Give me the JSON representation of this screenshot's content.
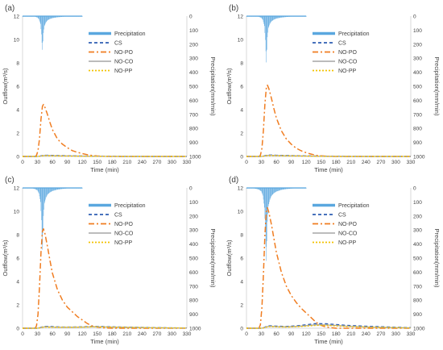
{
  "legend_labels": [
    "Precipitation",
    "CS",
    "NO-PO",
    "NO-CO",
    "NO-PP"
  ],
  "colors": {
    "precipitation": "#5aa7df",
    "cs": "#2f5fb3",
    "no_po": "#f07d21",
    "no_co": "#a6a6a6",
    "no_pp": "#f2c200",
    "axis": "#d9d9d9",
    "text": "#404040"
  },
  "chart_data": [
    {
      "type": "line",
      "panel_label": "(a)",
      "xlabel": "Time (min)",
      "ylabel": "Outflow(m³/s)",
      "y2label": "Precipitation(mm/min)",
      "xlim": [
        0,
        330
      ],
      "ylim": [
        0,
        12
      ],
      "y2lim": [
        0,
        1000
      ],
      "y2_inverted": true,
      "x_ticks": [
        "0",
        "30",
        "60",
        "90",
        "120",
        "150",
        "180",
        "210",
        "240",
        "270",
        "300",
        "330"
      ],
      "y_ticks": [
        "0",
        "2",
        "4",
        "6",
        "8",
        "10",
        "12"
      ],
      "y2_ticks": [
        "0",
        "100",
        "200",
        "300",
        "400",
        "500",
        "600",
        "700",
        "800",
        "900",
        "1000"
      ],
      "legend": [
        "Precipitation",
        "CS",
        "NO-PO",
        "NO-CO",
        "NO-PP"
      ],
      "precipitation": {
        "x": [
          0,
          5,
          10,
          15,
          20,
          25,
          30,
          33,
          36,
          38,
          39,
          40,
          41,
          42,
          44,
          47,
          50,
          55,
          60,
          70,
          80,
          90,
          100,
          110,
          120
        ],
        "values": [
          0,
          0,
          0,
          1,
          2,
          4,
          10,
          22,
          55,
          130,
          190,
          240,
          180,
          120,
          70,
          45,
          30,
          20,
          14,
          8,
          5,
          3,
          2,
          1,
          0
        ]
      },
      "series": [
        {
          "name": "CS",
          "x": [
            0,
            30,
            35,
            40,
            45,
            50,
            60,
            80,
            100,
            130,
            160,
            200,
            250,
            300,
            330
          ],
          "values": [
            0,
            0,
            0.03,
            0.08,
            0.1,
            0.1,
            0.09,
            0.07,
            0.05,
            0.03,
            0.02,
            0.01,
            0,
            0,
            0
          ]
        },
        {
          "name": "NO-PO",
          "x": [
            0,
            25,
            28,
            31,
            34,
            37,
            40,
            42,
            45,
            50,
            55,
            60,
            70,
            80,
            90,
            100,
            110,
            120,
            130,
            140,
            150,
            160,
            180,
            330
          ],
          "values": [
            0,
            0,
            0.1,
            0.5,
            1.5,
            3.2,
            4.3,
            4.45,
            4.2,
            3.6,
            2.9,
            2.3,
            1.5,
            1.05,
            0.75,
            0.5,
            0.35,
            0.25,
            0.15,
            0.08,
            0.04,
            0.02,
            0,
            0
          ]
        },
        {
          "name": "NO-CO",
          "x": [
            0,
            30,
            35,
            40,
            45,
            50,
            60,
            80,
            100,
            130,
            160,
            200,
            250,
            300,
            330
          ],
          "values": [
            0,
            0,
            0.03,
            0.07,
            0.08,
            0.08,
            0.07,
            0.05,
            0.04,
            0.02,
            0.01,
            0,
            0,
            0,
            0
          ]
        },
        {
          "name": "NO-PP",
          "x": [
            0,
            30,
            35,
            40,
            45,
            50,
            60,
            80,
            100,
            130,
            160,
            200,
            250,
            300,
            330
          ],
          "values": [
            0,
            0,
            0.02,
            0.05,
            0.06,
            0.06,
            0.05,
            0.04,
            0.03,
            0.02,
            0.01,
            0,
            0,
            0,
            0
          ]
        }
      ]
    },
    {
      "type": "line",
      "panel_label": "(b)",
      "xlabel": "Time (min)",
      "ylabel": "Outflow(m³/s)",
      "y2label": "Precipitation(mm/min)",
      "xlim": [
        0,
        330
      ],
      "ylim": [
        0,
        12
      ],
      "y2lim": [
        0,
        1000
      ],
      "y2_inverted": true,
      "x_ticks": [
        "0",
        "30",
        "60",
        "90",
        "120",
        "150",
        "180",
        "210",
        "240",
        "270",
        "300",
        "330"
      ],
      "y_ticks": [
        "0",
        "2",
        "4",
        "6",
        "8",
        "10",
        "12"
      ],
      "y2_ticks": [
        "0",
        "100",
        "200",
        "300",
        "400",
        "500",
        "600",
        "700",
        "800",
        "900",
        "1000"
      ],
      "legend": [
        "Precipitation",
        "CS",
        "NO-PO",
        "NO-CO",
        "NO-PP"
      ],
      "precipitation": {
        "x": [
          0,
          5,
          10,
          15,
          20,
          25,
          30,
          33,
          36,
          38,
          39,
          40,
          41,
          42,
          44,
          47,
          50,
          55,
          60,
          70,
          80,
          90,
          100,
          110,
          120
        ],
        "values": [
          0,
          0,
          0,
          1,
          3,
          5,
          12,
          28,
          70,
          170,
          250,
          330,
          240,
          150,
          85,
          55,
          38,
          25,
          17,
          10,
          6,
          4,
          2,
          1,
          0
        ]
      },
      "series": [
        {
          "name": "CS",
          "x": [
            0,
            30,
            35,
            40,
            45,
            50,
            60,
            80,
            100,
            130,
            160,
            200,
            250,
            300,
            330
          ],
          "values": [
            0,
            0,
            0.04,
            0.1,
            0.12,
            0.12,
            0.1,
            0.08,
            0.06,
            0.04,
            0.02,
            0.01,
            0,
            0,
            0
          ]
        },
        {
          "name": "NO-PO",
          "x": [
            0,
            25,
            28,
            31,
            34,
            37,
            40,
            42,
            45,
            50,
            55,
            60,
            70,
            80,
            90,
            100,
            110,
            120,
            130,
            140,
            150,
            160,
            180,
            330
          ],
          "values": [
            0,
            0,
            0.1,
            0.7,
            2.2,
            4.5,
            5.9,
            6.1,
            5.8,
            5.0,
            4.1,
            3.3,
            2.2,
            1.5,
            1.05,
            0.7,
            0.48,
            0.32,
            0.2,
            0.1,
            0.05,
            0.02,
            0,
            0
          ]
        },
        {
          "name": "NO-CO",
          "x": [
            0,
            30,
            35,
            40,
            45,
            50,
            60,
            80,
            100,
            130,
            160,
            200,
            250,
            300,
            330
          ],
          "values": [
            0,
            0,
            0.03,
            0.08,
            0.1,
            0.1,
            0.08,
            0.06,
            0.05,
            0.03,
            0.01,
            0,
            0,
            0,
            0
          ]
        },
        {
          "name": "NO-PP",
          "x": [
            0,
            30,
            35,
            40,
            45,
            50,
            60,
            80,
            100,
            130,
            160,
            200,
            250,
            300,
            330
          ],
          "values": [
            0,
            0,
            0.02,
            0.06,
            0.07,
            0.07,
            0.06,
            0.05,
            0.04,
            0.02,
            0.01,
            0,
            0,
            0,
            0
          ]
        }
      ]
    },
    {
      "type": "line",
      "panel_label": "(c)",
      "xlabel": "Time (min)",
      "ylabel": "Outflow(m³/s)",
      "y2label": "Precipitation(mm/min)",
      "xlim": [
        0,
        330
      ],
      "ylim": [
        0,
        12
      ],
      "y2lim": [
        0,
        1000
      ],
      "y2_inverted": true,
      "x_ticks": [
        "0",
        "30",
        "60",
        "90",
        "120",
        "150",
        "180",
        "210",
        "240",
        "270",
        "300",
        "330"
      ],
      "y_ticks": [
        "0",
        "2",
        "4",
        "6",
        "8",
        "10",
        "12"
      ],
      "y2_ticks": [
        "0",
        "100",
        "200",
        "300",
        "400",
        "500",
        "600",
        "700",
        "800",
        "900",
        "1000"
      ],
      "legend": [
        "Precipitation",
        "CS",
        "NO-PO",
        "NO-CO",
        "NO-PP"
      ],
      "precipitation": {
        "x": [
          0,
          5,
          10,
          15,
          20,
          25,
          30,
          33,
          36,
          38,
          39,
          40,
          41,
          42,
          44,
          47,
          50,
          55,
          60,
          70,
          80,
          90,
          100,
          110,
          120
        ],
        "values": [
          0,
          0,
          1,
          2,
          4,
          8,
          18,
          40,
          100,
          230,
          340,
          440,
          320,
          200,
          110,
          70,
          48,
          32,
          22,
          12,
          7,
          4,
          3,
          1,
          0
        ]
      },
      "series": [
        {
          "name": "CS",
          "x": [
            0,
            30,
            35,
            40,
            45,
            50,
            60,
            80,
            100,
            120,
            140,
            160,
            200,
            250,
            300,
            330
          ],
          "values": [
            0,
            0,
            0.05,
            0.12,
            0.15,
            0.15,
            0.13,
            0.1,
            0.1,
            0.12,
            0.15,
            0.14,
            0.1,
            0.06,
            0.03,
            0.02
          ]
        },
        {
          "name": "NO-PO",
          "x": [
            0,
            25,
            28,
            31,
            34,
            37,
            40,
            42,
            45,
            50,
            55,
            60,
            70,
            80,
            90,
            100,
            110,
            120,
            130,
            140,
            150,
            160,
            180,
            330
          ],
          "values": [
            0,
            0,
            0.2,
            1.2,
            3.5,
            6.5,
            8.3,
            8.5,
            8.1,
            7.0,
            5.8,
            4.7,
            3.3,
            2.4,
            1.8,
            1.4,
            1.0,
            0.7,
            0.4,
            0.2,
            0.1,
            0.04,
            0,
            0
          ]
        },
        {
          "name": "NO-CO",
          "x": [
            0,
            30,
            35,
            40,
            45,
            50,
            60,
            80,
            100,
            120,
            140,
            160,
            200,
            250,
            300,
            330
          ],
          "values": [
            0,
            0,
            0.04,
            0.1,
            0.12,
            0.12,
            0.1,
            0.08,
            0.08,
            0.1,
            0.12,
            0.11,
            0.08,
            0.05,
            0.02,
            0.01
          ]
        },
        {
          "name": "NO-PP",
          "x": [
            0,
            30,
            35,
            40,
            45,
            50,
            60,
            80,
            100,
            120,
            140,
            160,
            200,
            250,
            300,
            330
          ],
          "values": [
            0,
            0,
            0.03,
            0.08,
            0.1,
            0.1,
            0.09,
            0.08,
            0.08,
            0.1,
            0.12,
            0.11,
            0.08,
            0.05,
            0.03,
            0.02
          ]
        }
      ]
    },
    {
      "type": "line",
      "panel_label": "(d)",
      "xlabel": "Time (min)",
      "ylabel": "Outflow(m³/s)",
      "y2label": "Precipitation(mm/min)",
      "xlim": [
        0,
        330
      ],
      "ylim": [
        0,
        12
      ],
      "y2lim": [
        0,
        1000
      ],
      "y2_inverted": true,
      "x_ticks": [
        "0",
        "30",
        "60",
        "90",
        "120",
        "150",
        "180",
        "210",
        "240",
        "270",
        "300",
        "330"
      ],
      "y_ticks": [
        "0",
        "2",
        "4",
        "6",
        "8",
        "10",
        "12"
      ],
      "y2_ticks": [
        "0",
        "100",
        "200",
        "300",
        "400",
        "500",
        "600",
        "700",
        "800",
        "900",
        "1000"
      ],
      "legend": [
        "Precipitation",
        "CS",
        "NO-PO",
        "NO-CO",
        "NO-PP"
      ],
      "precipitation": {
        "x": [
          0,
          5,
          10,
          15,
          20,
          25,
          30,
          33,
          36,
          38,
          39,
          40,
          41,
          42,
          44,
          47,
          50,
          55,
          60,
          70,
          80,
          90,
          100,
          110,
          120
        ],
        "values": [
          0,
          1,
          2,
          4,
          7,
          12,
          25,
          55,
          140,
          300,
          420,
          520,
          380,
          240,
          130,
          85,
          58,
          38,
          26,
          14,
          8,
          5,
          3,
          1,
          0
        ]
      },
      "series": [
        {
          "name": "CS",
          "x": [
            0,
            30,
            35,
            40,
            45,
            50,
            60,
            80,
            100,
            120,
            140,
            160,
            180,
            200,
            250,
            300,
            330
          ],
          "values": [
            0,
            0,
            0.05,
            0.15,
            0.2,
            0.2,
            0.18,
            0.15,
            0.2,
            0.3,
            0.4,
            0.38,
            0.32,
            0.25,
            0.15,
            0.08,
            0.05
          ]
        },
        {
          "name": "NO-PO",
          "x": [
            0,
            25,
            28,
            31,
            34,
            37,
            40,
            42,
            45,
            50,
            55,
            60,
            70,
            80,
            90,
            100,
            110,
            120,
            130,
            140,
            150,
            160,
            180,
            330
          ],
          "values": [
            0,
            0,
            0.3,
            1.8,
            4.5,
            8.0,
            10.0,
            10.3,
            9.9,
            8.9,
            7.7,
            6.5,
            4.8,
            3.6,
            2.8,
            2.2,
            1.7,
            1.3,
            0.9,
            0.5,
            0.25,
            0.1,
            0,
            0
          ]
        },
        {
          "name": "NO-CO",
          "x": [
            0,
            30,
            35,
            40,
            45,
            50,
            60,
            80,
            100,
            120,
            140,
            160,
            180,
            200,
            250,
            300,
            330
          ],
          "values": [
            0,
            0,
            0.04,
            0.12,
            0.16,
            0.16,
            0.14,
            0.12,
            0.15,
            0.22,
            0.3,
            0.28,
            0.24,
            0.18,
            0.1,
            0.05,
            0.03
          ]
        },
        {
          "name": "NO-PP",
          "x": [
            0,
            30,
            35,
            40,
            45,
            50,
            60,
            80,
            100,
            120,
            140,
            160,
            180,
            200,
            250,
            300,
            330
          ],
          "values": [
            0,
            0,
            0.03,
            0.1,
            0.13,
            0.13,
            0.12,
            0.1,
            0.13,
            0.18,
            0.25,
            0.24,
            0.2,
            0.15,
            0.09,
            0.05,
            0.03
          ]
        }
      ]
    }
  ]
}
